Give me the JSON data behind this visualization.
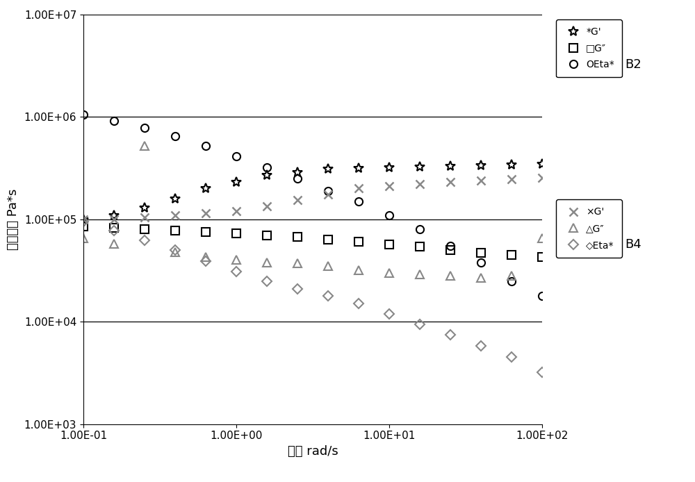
{
  "xlabel": "频率 rad/s",
  "ylabel": "动态粘度 Pa*s",
  "background_color": "#ffffff",
  "B2_Gprime": {
    "x": [
      0.1,
      0.1585,
      0.251,
      0.398,
      0.631,
      1.0,
      1.585,
      2.51,
      3.98,
      6.31,
      10.0,
      15.85,
      25.1,
      39.8,
      63.1,
      100.0
    ],
    "y": [
      100000.0,
      110000.0,
      130000.0,
      160000.0,
      200000.0,
      230000.0,
      270000.0,
      290000.0,
      310000.0,
      315000.0,
      320000.0,
      325000.0,
      330000.0,
      335000.0,
      340000.0,
      345000.0
    ],
    "marker": "*",
    "color": "#000000",
    "markersize": 10
  },
  "B2_Gdoubleprime": {
    "x": [
      0.1,
      0.1585,
      0.251,
      0.398,
      0.631,
      1.0,
      1.585,
      2.51,
      3.98,
      6.31,
      10.0,
      15.85,
      25.1,
      39.8,
      63.1,
      100.0
    ],
    "y": [
      85000.0,
      83000.0,
      80000.0,
      78000.0,
      75000.0,
      73000.0,
      70000.0,
      67000.0,
      63000.0,
      60000.0,
      57000.0,
      54000.0,
      50000.0,
      47000.0,
      45000.0,
      43000.0
    ],
    "marker": "s",
    "color": "#000000",
    "markersize": 8
  },
  "B2_Eta": {
    "x": [
      0.1,
      0.1585,
      0.251,
      0.398,
      0.631,
      1.0,
      1.585,
      2.51,
      3.98,
      6.31,
      10.0,
      15.85,
      25.1,
      39.8,
      63.1,
      100.0
    ],
    "y": [
      1050000.0,
      920000.0,
      780000.0,
      650000.0,
      520000.0,
      410000.0,
      320000.0,
      250000.0,
      190000.0,
      150000.0,
      110000.0,
      80000.0,
      55000.0,
      38000.0,
      25000.0,
      18000.0
    ],
    "marker": "o",
    "color": "#000000",
    "markersize": 8
  },
  "B4_Gprime": {
    "x": [
      0.1,
      0.1585,
      0.251,
      0.398,
      0.631,
      1.0,
      1.585,
      2.51,
      3.98,
      6.31,
      10.0,
      15.85,
      25.1,
      39.8,
      63.1,
      100.0
    ],
    "y": [
      100000.0,
      100000.0,
      105000.0,
      110000.0,
      115000.0,
      120000.0,
      135000.0,
      155000.0,
      175000.0,
      200000.0,
      210000.0,
      220000.0,
      230000.0,
      240000.0,
      245000.0,
      255000.0
    ],
    "marker": "x",
    "color": "#888888",
    "markersize": 8
  },
  "B4_Gdoubleprime": {
    "x": [
      0.1,
      0.1585,
      0.251,
      0.398,
      0.631,
      1.0,
      1.585,
      2.51,
      3.98,
      6.31,
      10.0,
      15.85,
      25.1,
      39.8,
      63.1,
      100.0
    ],
    "y": [
      65000.0,
      58000.0,
      520000.0,
      48000.0,
      43000.0,
      40000.0,
      38000.0,
      37000.0,
      35000.0,
      32000.0,
      30000.0,
      29000.0,
      28000.0,
      27000.0,
      28000.0,
      65000.0
    ],
    "marker": "^",
    "color": "#888888",
    "markersize": 8
  },
  "B4_Eta": {
    "x": [
      0.1,
      0.1585,
      0.251,
      0.398,
      0.631,
      1.0,
      1.585,
      2.51,
      3.98,
      6.31,
      10.0,
      15.85,
      25.1,
      39.8,
      63.1,
      100.0
    ],
    "y": [
      95000.0,
      78000.0,
      62000.0,
      50000.0,
      39000.0,
      31000.0,
      25000.0,
      21000.0,
      18000.0,
      15000.0,
      12000.0,
      9500.0,
      7500.0,
      5800.0,
      4500.0,
      3200.0
    ],
    "marker": "D",
    "color": "#888888",
    "markersize": 7
  },
  "hlines": [
    10000.0,
    100000.0,
    1000000.0,
    10000000.0
  ],
  "ytick_labels": [
    "1.00E+03",
    "1.00E+04",
    "1.00E+05",
    "1.00E+06",
    "1.00E+07"
  ],
  "ytick_vals": [
    1000.0,
    10000.0,
    100000.0,
    1000000.0,
    10000000.0
  ],
  "xtick_labels": [
    "1.00E-01",
    "1.00E+00",
    "1.00E+01",
    "1.00E+02"
  ],
  "xtick_vals": [
    0.1,
    1.0,
    10.0,
    100.0
  ],
  "figsize": [
    10.0,
    6.94
  ],
  "dpi": 100
}
